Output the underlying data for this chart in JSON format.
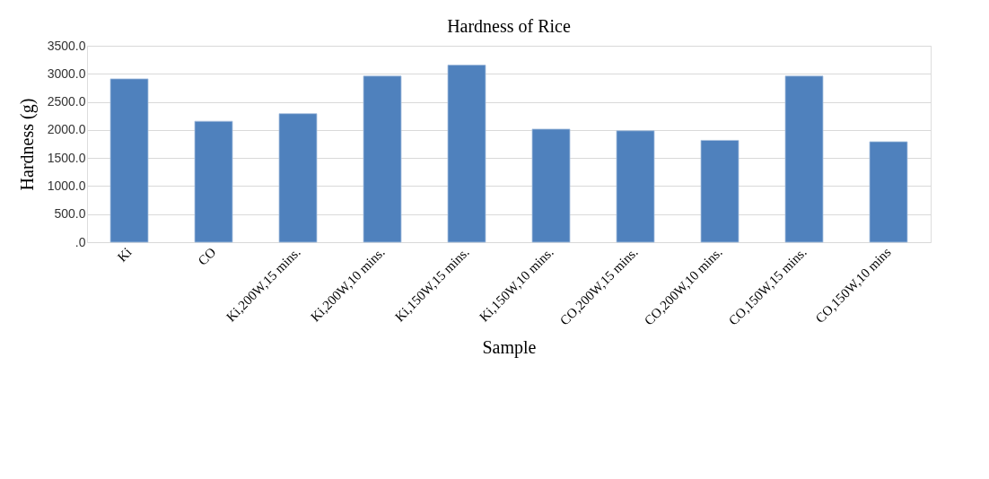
{
  "chart_data": {
    "type": "bar",
    "title": "Hardness  of Rice",
    "xlabel": "Sample",
    "ylabel": "Hardness  (g)",
    "categories": [
      "Ki",
      "CO",
      "Ki,200W,15 mins.",
      "Ki,200W,10 mins.",
      "Ki,150W,15 mins.",
      "Ki,150W,10 mins.",
      "CO,200W,15 mins.",
      "CO,200W,10 mins.",
      "CO,150W,15 mins.",
      "CO,150W,10 mins"
    ],
    "values": [
      2910,
      2155,
      2290,
      2960,
      3155,
      2015,
      1985,
      1815,
      2960,
      1790
    ],
    "color": "#4f81bd",
    "ylim": [
      0,
      3500
    ],
    "yticks": [
      {
        "value": 0,
        "label": ".0"
      },
      {
        "value": 500,
        "label": "500.0"
      },
      {
        "value": 1000,
        "label": "1000.0"
      },
      {
        "value": 1500,
        "label": "1500.0"
      },
      {
        "value": 2000,
        "label": "2000.0"
      },
      {
        "value": 2500,
        "label": "2500.0"
      },
      {
        "value": 3000,
        "label": "3000.0"
      },
      {
        "value": 3500,
        "label": "3500.0"
      }
    ],
    "grid": "y"
  }
}
